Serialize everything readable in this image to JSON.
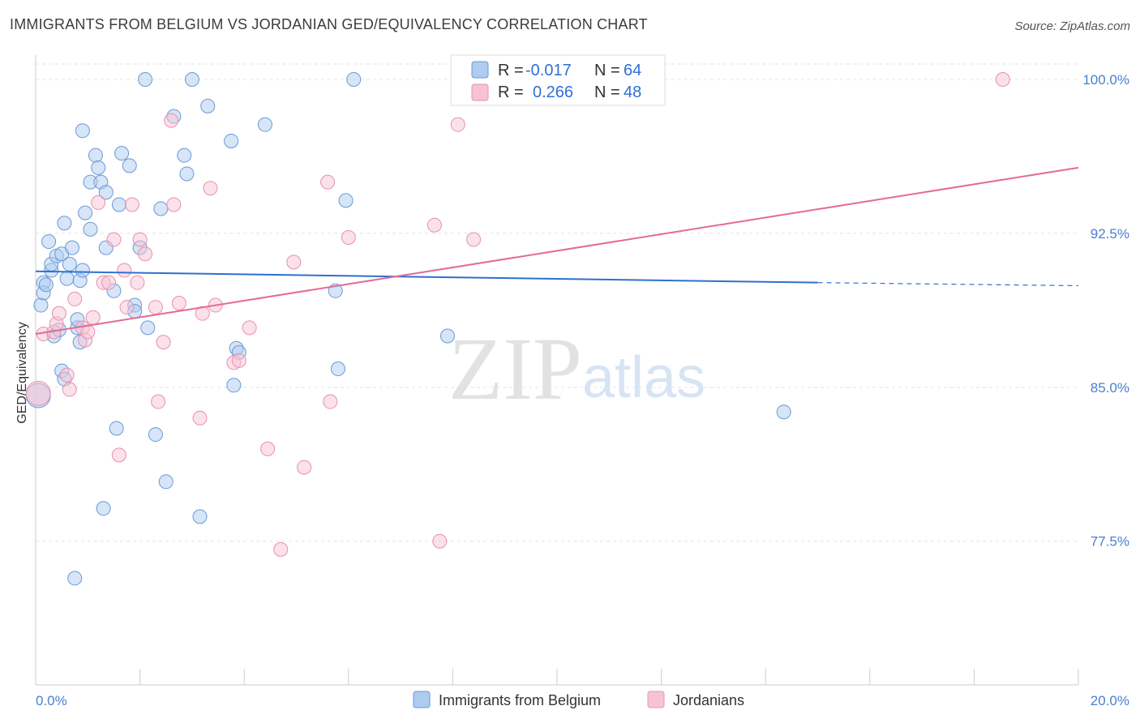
{
  "title": "IMMIGRANTS FROM BELGIUM VS JORDANIAN GED/EQUIVALENCY CORRELATION CHART",
  "source": "Source: ZipAtlas.com",
  "watermark": {
    "zip": "ZIP",
    "atlas": "atlas"
  },
  "colors": {
    "blue_fill": "#aecbf0",
    "blue_stroke": "#6a9ad6",
    "blue_line": "#2f6fd0",
    "pink_fill": "#f7c3d4",
    "pink_stroke": "#e890ae",
    "pink_line": "#e26b95",
    "tick_text": "#4a7fd0",
    "grid": "#e3e3e3"
  },
  "legend": {
    "r_label": "R =",
    "n_label": "N =",
    "series": [
      {
        "r": "-0.017",
        "n": "64"
      },
      {
        "r": "0.266",
        "n": "48"
      }
    ]
  },
  "bottom_legend": [
    "Immigrants from Belgium",
    "Jordanians"
  ],
  "chart_data": {
    "type": "scatter",
    "title": "IMMIGRANTS FROM BELGIUM VS JORDANIAN GED/EQUIVALENCY CORRELATION CHART",
    "xlabel": "",
    "ylabel": "GED/Equivalency",
    "xlim": [
      0,
      20
    ],
    "ylim": [
      70.5,
      101.5
    ],
    "x_tick_labels": [
      "0.0%",
      "20.0%"
    ],
    "y_ticks": [
      77.5,
      85.0,
      92.5,
      100.0
    ],
    "y_tick_labels": [
      "77.5%",
      "85.0%",
      "92.5%",
      "100.0%"
    ],
    "grid": true,
    "legend_position": "top-center",
    "series": [
      {
        "name": "Immigrants from Belgium",
        "color": "#aecbf0",
        "trend": {
          "x": [
            0,
            15
          ],
          "y": [
            90.65,
            90.1
          ],
          "dashed_to": [
            20,
            89.95
          ]
        },
        "points": [
          [
            0.05,
            84.6
          ],
          [
            0.1,
            89.0
          ],
          [
            0.15,
            90.1
          ],
          [
            0.15,
            89.6
          ],
          [
            0.2,
            90.0
          ],
          [
            0.25,
            92.1
          ],
          [
            0.3,
            90.7
          ],
          [
            0.3,
            91.0
          ],
          [
            0.35,
            87.5
          ],
          [
            0.4,
            91.4
          ],
          [
            0.45,
            87.8
          ],
          [
            0.5,
            91.5
          ],
          [
            0.5,
            85.8
          ],
          [
            0.55,
            93.0
          ],
          [
            0.55,
            85.4
          ],
          [
            0.6,
            90.3
          ],
          [
            0.65,
            91.0
          ],
          [
            0.7,
            91.8
          ],
          [
            0.75,
            75.7
          ],
          [
            0.8,
            87.9
          ],
          [
            0.8,
            88.3
          ],
          [
            0.85,
            90.2
          ],
          [
            0.85,
            87.2
          ],
          [
            0.9,
            90.7
          ],
          [
            0.9,
            97.5
          ],
          [
            0.95,
            93.5
          ],
          [
            1.05,
            95.0
          ],
          [
            1.05,
            92.7
          ],
          [
            1.15,
            96.3
          ],
          [
            1.2,
            95.7
          ],
          [
            1.25,
            95.0
          ],
          [
            1.3,
            79.1
          ],
          [
            1.35,
            91.8
          ],
          [
            1.35,
            94.5
          ],
          [
            1.5,
            89.7
          ],
          [
            1.55,
            83.0
          ],
          [
            1.6,
            93.9
          ],
          [
            1.65,
            96.4
          ],
          [
            1.8,
            95.8
          ],
          [
            1.9,
            89.0
          ],
          [
            1.9,
            88.7
          ],
          [
            2.0,
            91.8
          ],
          [
            2.1,
            100.0
          ],
          [
            2.15,
            87.9
          ],
          [
            2.3,
            82.7
          ],
          [
            2.4,
            93.7
          ],
          [
            2.5,
            80.4
          ],
          [
            2.65,
            98.2
          ],
          [
            2.85,
            96.3
          ],
          [
            2.9,
            95.4
          ],
          [
            3.0,
            100.0
          ],
          [
            3.15,
            78.7
          ],
          [
            3.3,
            98.7
          ],
          [
            3.75,
            97.0
          ],
          [
            3.8,
            85.1
          ],
          [
            3.85,
            86.9
          ],
          [
            3.9,
            86.7
          ],
          [
            4.4,
            97.8
          ],
          [
            5.75,
            89.7
          ],
          [
            5.8,
            85.9
          ],
          [
            5.95,
            94.1
          ],
          [
            6.1,
            100.0
          ],
          [
            7.9,
            87.5
          ],
          [
            14.35,
            83.8
          ]
        ]
      },
      {
        "name": "Jordanians",
        "color": "#f7c3d4",
        "trend": {
          "x": [
            0,
            20
          ],
          "y": [
            87.6,
            95.7
          ]
        },
        "points": [
          [
            0.05,
            84.7
          ],
          [
            0.15,
            87.6
          ],
          [
            0.35,
            87.7
          ],
          [
            0.4,
            88.1
          ],
          [
            0.45,
            88.6
          ],
          [
            0.6,
            85.6
          ],
          [
            0.65,
            84.9
          ],
          [
            0.75,
            89.3
          ],
          [
            0.9,
            87.9
          ],
          [
            0.95,
            87.3
          ],
          [
            1.0,
            87.7
          ],
          [
            1.1,
            88.4
          ],
          [
            1.2,
            94.0
          ],
          [
            1.3,
            90.1
          ],
          [
            1.4,
            90.1
          ],
          [
            1.5,
            92.2
          ],
          [
            1.6,
            81.7
          ],
          [
            1.7,
            90.7
          ],
          [
            1.75,
            88.9
          ],
          [
            1.85,
            93.9
          ],
          [
            1.95,
            90.1
          ],
          [
            2.0,
            92.2
          ],
          [
            2.1,
            91.5
          ],
          [
            2.3,
            88.9
          ],
          [
            2.35,
            84.3
          ],
          [
            2.45,
            87.2
          ],
          [
            2.6,
            98.0
          ],
          [
            2.65,
            93.9
          ],
          [
            2.75,
            89.1
          ],
          [
            3.15,
            83.5
          ],
          [
            3.2,
            88.6
          ],
          [
            3.35,
            94.7
          ],
          [
            3.45,
            89.0
          ],
          [
            3.8,
            86.2
          ],
          [
            3.9,
            86.3
          ],
          [
            4.1,
            87.9
          ],
          [
            4.45,
            82.0
          ],
          [
            4.7,
            77.1
          ],
          [
            4.95,
            91.1
          ],
          [
            5.15,
            81.1
          ],
          [
            5.6,
            95.0
          ],
          [
            5.65,
            84.3
          ],
          [
            6.0,
            92.3
          ],
          [
            7.65,
            92.9
          ],
          [
            7.75,
            77.5
          ],
          [
            8.1,
            97.8
          ],
          [
            8.4,
            92.2
          ],
          [
            18.55,
            100.0
          ]
        ]
      }
    ]
  }
}
